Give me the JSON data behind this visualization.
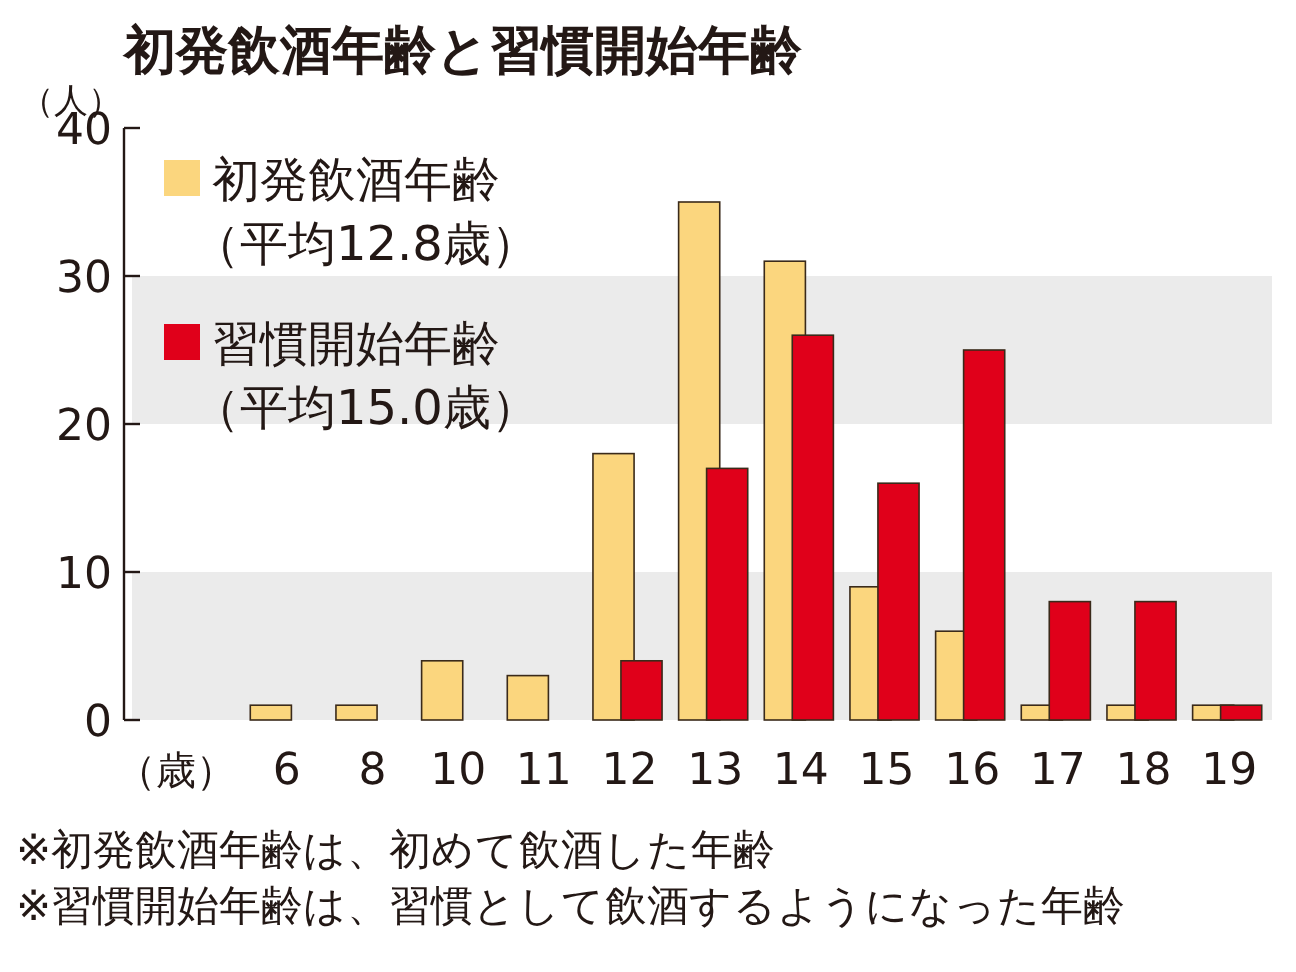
{
  "chart_data": {
    "type": "bar",
    "title": "初発飲酒年齢と習慣開始年齢",
    "ylabel": "（人）",
    "xlabel": "（歳）",
    "categories": [
      "6",
      "8",
      "10",
      "11",
      "12",
      "13",
      "14",
      "15",
      "16",
      "17",
      "18",
      "19"
    ],
    "series": [
      {
        "name": "初発飲酒年齢（平均12.8歳）",
        "color": "#fbd67e",
        "values": [
          1,
          1,
          4,
          3,
          18,
          35,
          31,
          9,
          6,
          1,
          1,
          1
        ]
      },
      {
        "name": "習慣開始年齢（平均15.0歳）",
        "color": "#e0001a",
        "values": [
          0,
          0,
          0,
          0,
          4,
          17,
          26,
          16,
          25,
          8,
          8,
          1
        ]
      }
    ],
    "ylim": [
      0,
      40
    ],
    "yticks": [
      0,
      10,
      20,
      30,
      40
    ],
    "bands": [
      {
        "axis": "y",
        "from": 0,
        "to": 10,
        "color": "#ebebeb"
      },
      {
        "axis": "y",
        "from": 20,
        "to": 30,
        "color": "#ebebeb"
      }
    ],
    "legend": "top left",
    "annotations": [
      "※初発飲酒年齢は、初めて飲酒した年齢",
      "※習慣開始年齢は、習慣として飲酒するようになった年齢"
    ]
  }
}
